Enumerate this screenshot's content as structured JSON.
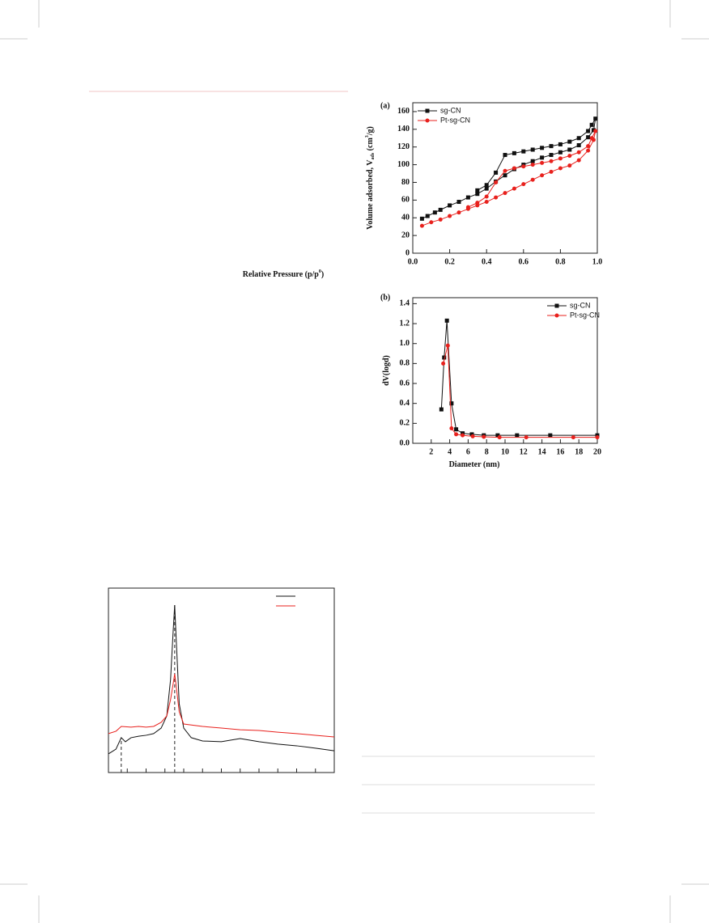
{
  "chart_data": [
    {
      "type": "line",
      "label": "(a)",
      "x_label": [
        "Relative Pressure (p/p",
        "0",
        ")"
      ],
      "y_label": [
        "Volume adsorbed, V",
        "ads",
        " (cm",
        "3",
        "/g)"
      ],
      "xlim": [
        0,
        1
      ],
      "ylim": [
        0,
        170
      ],
      "xticks": [
        {
          "value": 0,
          "label": "0.0"
        },
        0.2,
        0.4,
        0.6,
        0.8,
        {
          "value": 1,
          "label": "1.0"
        }
      ],
      "yticks": [
        0,
        20,
        40,
        60,
        80,
        100,
        120,
        140,
        160
      ],
      "legend": "upper left",
      "series": [
        {
          "name": "sg-CN",
          "color": "#111111",
          "marker": "square",
          "x": [
            0.05,
            0.08,
            0.12,
            0.15,
            0.2,
            0.25,
            0.3,
            0.35,
            0.4,
            0.45,
            0.5,
            0.55,
            0.6,
            0.65,
            0.7,
            0.75,
            0.8,
            0.85,
            0.9,
            0.95,
            0.98,
            0.99,
            0.97,
            0.95,
            0.9,
            0.85,
            0.8,
            0.75,
            0.7,
            0.65,
            0.6,
            0.55,
            0.5,
            0.45,
            0.4,
            0.35
          ],
          "values": [
            39,
            42,
            46,
            49,
            54,
            58,
            63,
            67,
            73,
            81,
            88,
            95,
            100,
            104,
            108,
            111,
            114,
            117,
            122,
            131,
            139,
            152,
            145,
            138,
            130,
            126,
            123,
            121,
            119,
            117,
            115,
            113,
            111,
            91,
            77,
            71
          ]
        },
        {
          "name": "Pt-sg-CN",
          "color": "#e8211d",
          "marker": "circle",
          "x": [
            0.05,
            0.1,
            0.15,
            0.2,
            0.25,
            0.3,
            0.35,
            0.4,
            0.45,
            0.5,
            0.55,
            0.6,
            0.65,
            0.7,
            0.75,
            0.8,
            0.85,
            0.9,
            0.95,
            0.98,
            0.99,
            0.97,
            0.95,
            0.9,
            0.85,
            0.8,
            0.75,
            0.7,
            0.65,
            0.6,
            0.55,
            0.5,
            0.45,
            0.4,
            0.35,
            0.3
          ],
          "values": [
            31,
            35,
            38,
            42,
            46,
            50,
            54,
            58,
            63,
            68,
            73,
            78,
            83,
            88,
            92,
            96,
            99,
            105,
            116,
            128,
            138,
            130,
            121,
            114,
            110,
            107,
            104,
            102,
            100,
            98,
            96,
            93,
            80,
            64,
            57,
            52
          ]
        }
      ]
    },
    {
      "type": "line",
      "label": "(b)",
      "x_label": [
        "Diameter (nm)"
      ],
      "y_label": [
        "dV(logd)"
      ],
      "xlim": [
        0,
        20
      ],
      "ylim": [
        0,
        1.46
      ],
      "xticks": [
        2,
        4,
        6,
        8,
        10,
        12,
        14,
        16,
        18,
        20
      ],
      "yticks": [
        {
          "value": 0,
          "label": "0.0"
        },
        0.2,
        0.4,
        0.6,
        0.8,
        {
          "value": 1,
          "label": "1.0"
        },
        1.2,
        1.4
      ],
      "legend": "upper right",
      "series": [
        {
          "name": "sg-CN",
          "color": "#111111",
          "marker": "square",
          "x": [
            3.1,
            3.4,
            3.7,
            4.2,
            4.7,
            5.4,
            6.4,
            7.7,
            9.2,
            11.3,
            14.9,
            20
          ],
          "values": [
            0.34,
            0.86,
            1.23,
            0.4,
            0.14,
            0.1,
            0.09,
            0.08,
            0.08,
            0.08,
            0.08,
            0.08
          ]
        },
        {
          "name": "Pt-sg-CN",
          "color": "#e8211d",
          "marker": "circle",
          "x": [
            3.3,
            3.8,
            4.2,
            4.7,
            5.4,
            6.5,
            7.7,
            9.4,
            12.3,
            17.4,
            20
          ],
          "values": [
            0.8,
            0.98,
            0.15,
            0.09,
            0.08,
            0.07,
            0.065,
            0.06,
            0.06,
            0.06,
            0.06
          ]
        }
      ]
    },
    {
      "type": "line",
      "xlim": [
        0,
        60
      ],
      "ylim": [
        0,
        100
      ],
      "xticks": [
        0,
        5,
        10,
        15,
        20,
        25,
        30,
        35,
        40,
        45,
        50,
        55,
        60
      ],
      "tick_labels": false,
      "legend": "upper right",
      "ref_lines": [
        3.4,
        17.6
      ],
      "series": [
        {
          "color": "#111111",
          "x": [
            0,
            2,
            3.4,
            4.5,
            6,
            8,
            10,
            12,
            14,
            15.5,
            16.5,
            17.2,
            17.6,
            18,
            18.8,
            20,
            22,
            25,
            30,
            35,
            40,
            45,
            50,
            55,
            60
          ],
          "values": [
            10.1,
            12.7,
            18.9,
            16.7,
            18.9,
            19.7,
            20.2,
            21.1,
            24.1,
            30.7,
            50.4,
            76.8,
            90.8,
            72.4,
            37.3,
            24.1,
            18.9,
            17.1,
            16.7,
            18.4,
            16.7,
            15.4,
            14.5,
            13.2,
            11.8
          ]
        },
        {
          "color": "#e8211d",
          "x": [
            0,
            2,
            3.4,
            6,
            8,
            10,
            12,
            14,
            15.5,
            16.5,
            17.2,
            17.6,
            18,
            18.8,
            20,
            25,
            30,
            35,
            40,
            45,
            50,
            55,
            60
          ],
          "values": [
            21.1,
            22.4,
            25,
            24.6,
            25,
            24.6,
            25,
            27.2,
            30.7,
            39.5,
            48.2,
            53.5,
            46.9,
            32.9,
            26.3,
            25,
            24.1,
            23.2,
            22.8,
            21.9,
            21.1,
            20.2,
            19.3
          ]
        }
      ]
    }
  ]
}
